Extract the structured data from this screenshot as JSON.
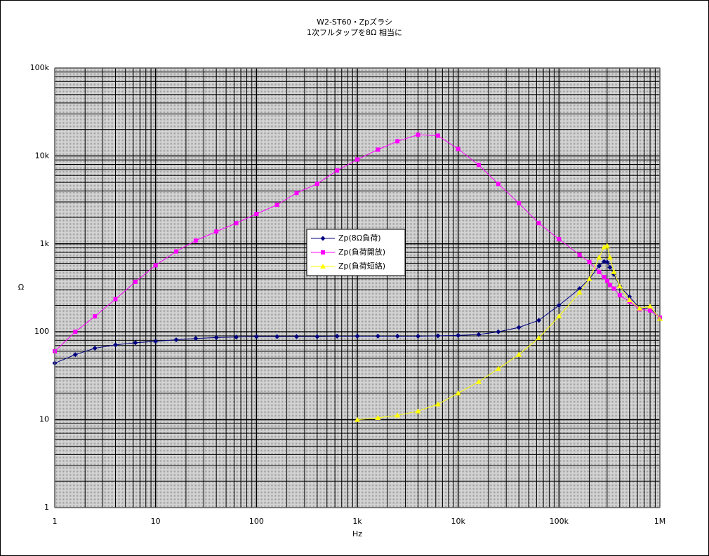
{
  "chart_data": {
    "type": "line",
    "title": "W2-ST60・Zpズラシ",
    "subtitle": "1次フルタップを8Ω 相当に",
    "x_label": "Hz",
    "y_label": "Ω",
    "log_x": true,
    "log_y": true,
    "grid": true,
    "xlim": [
      1,
      1000000
    ],
    "ylim": [
      1,
      100000
    ],
    "xticks": [
      1,
      10,
      100,
      {
        "value": 1000,
        "label": "1k"
      },
      {
        "value": 10000,
        "label": "10k"
      },
      {
        "value": 100000,
        "label": "100k"
      },
      {
        "value": 1000000,
        "label": "1M"
      }
    ],
    "yticks": [
      1,
      10,
      100,
      {
        "value": 1000,
        "label": "1k"
      },
      {
        "value": 10000,
        "label": "10k"
      },
      {
        "value": 100000,
        "label": "100k"
      }
    ],
    "x": [
      1,
      1.6,
      2.5,
      4,
      6.3,
      10,
      16,
      25,
      40,
      63,
      100,
      160,
      250,
      400,
      630,
      1000,
      1600,
      2500,
      4000,
      6300,
      10000,
      16000,
      25000,
      40000,
      63000,
      100000,
      160000,
      200000,
      250000,
      280000,
      300000,
      320000,
      350000,
      400000,
      500000,
      630000,
      800000,
      1000000
    ],
    "series": [
      {
        "name": "Zp(8Ω負荷)",
        "color": "#000080",
        "marker": "diamond",
        "values": [
          44,
          55,
          65,
          71,
          75,
          78,
          81,
          84,
          86,
          87,
          88,
          88,
          88,
          88,
          89,
          89,
          89,
          89,
          89,
          90,
          91,
          93,
          100,
          112,
          135,
          200,
          310,
          400,
          560,
          630,
          620,
          540,
          450,
          330,
          250,
          185,
          185,
          145
        ]
      },
      {
        "name": "Zp(負荷開放)",
        "color": "#ff00ff",
        "marker": "square",
        "values": [
          60,
          100,
          150,
          235,
          370,
          570,
          820,
          1090,
          1380,
          1720,
          2190,
          2780,
          3790,
          4820,
          6830,
          9100,
          11800,
          14700,
          17400,
          17000,
          12000,
          7900,
          4800,
          2900,
          1720,
          1130,
          750,
          620,
          480,
          420,
          380,
          340,
          310,
          260,
          220,
          180,
          175,
          145
        ]
      },
      {
        "name": "Zp(負荷短絡)",
        "color": "#ffff00",
        "marker": "triangle",
        "values": [
          null,
          null,
          null,
          null,
          null,
          null,
          null,
          null,
          null,
          null,
          null,
          null,
          null,
          null,
          null,
          10,
          10.5,
          11.2,
          12.5,
          15,
          20,
          27,
          38,
          55,
          85,
          150,
          280,
          400,
          700,
          920,
          950,
          700,
          480,
          330,
          230,
          185,
          195,
          140
        ]
      }
    ]
  }
}
